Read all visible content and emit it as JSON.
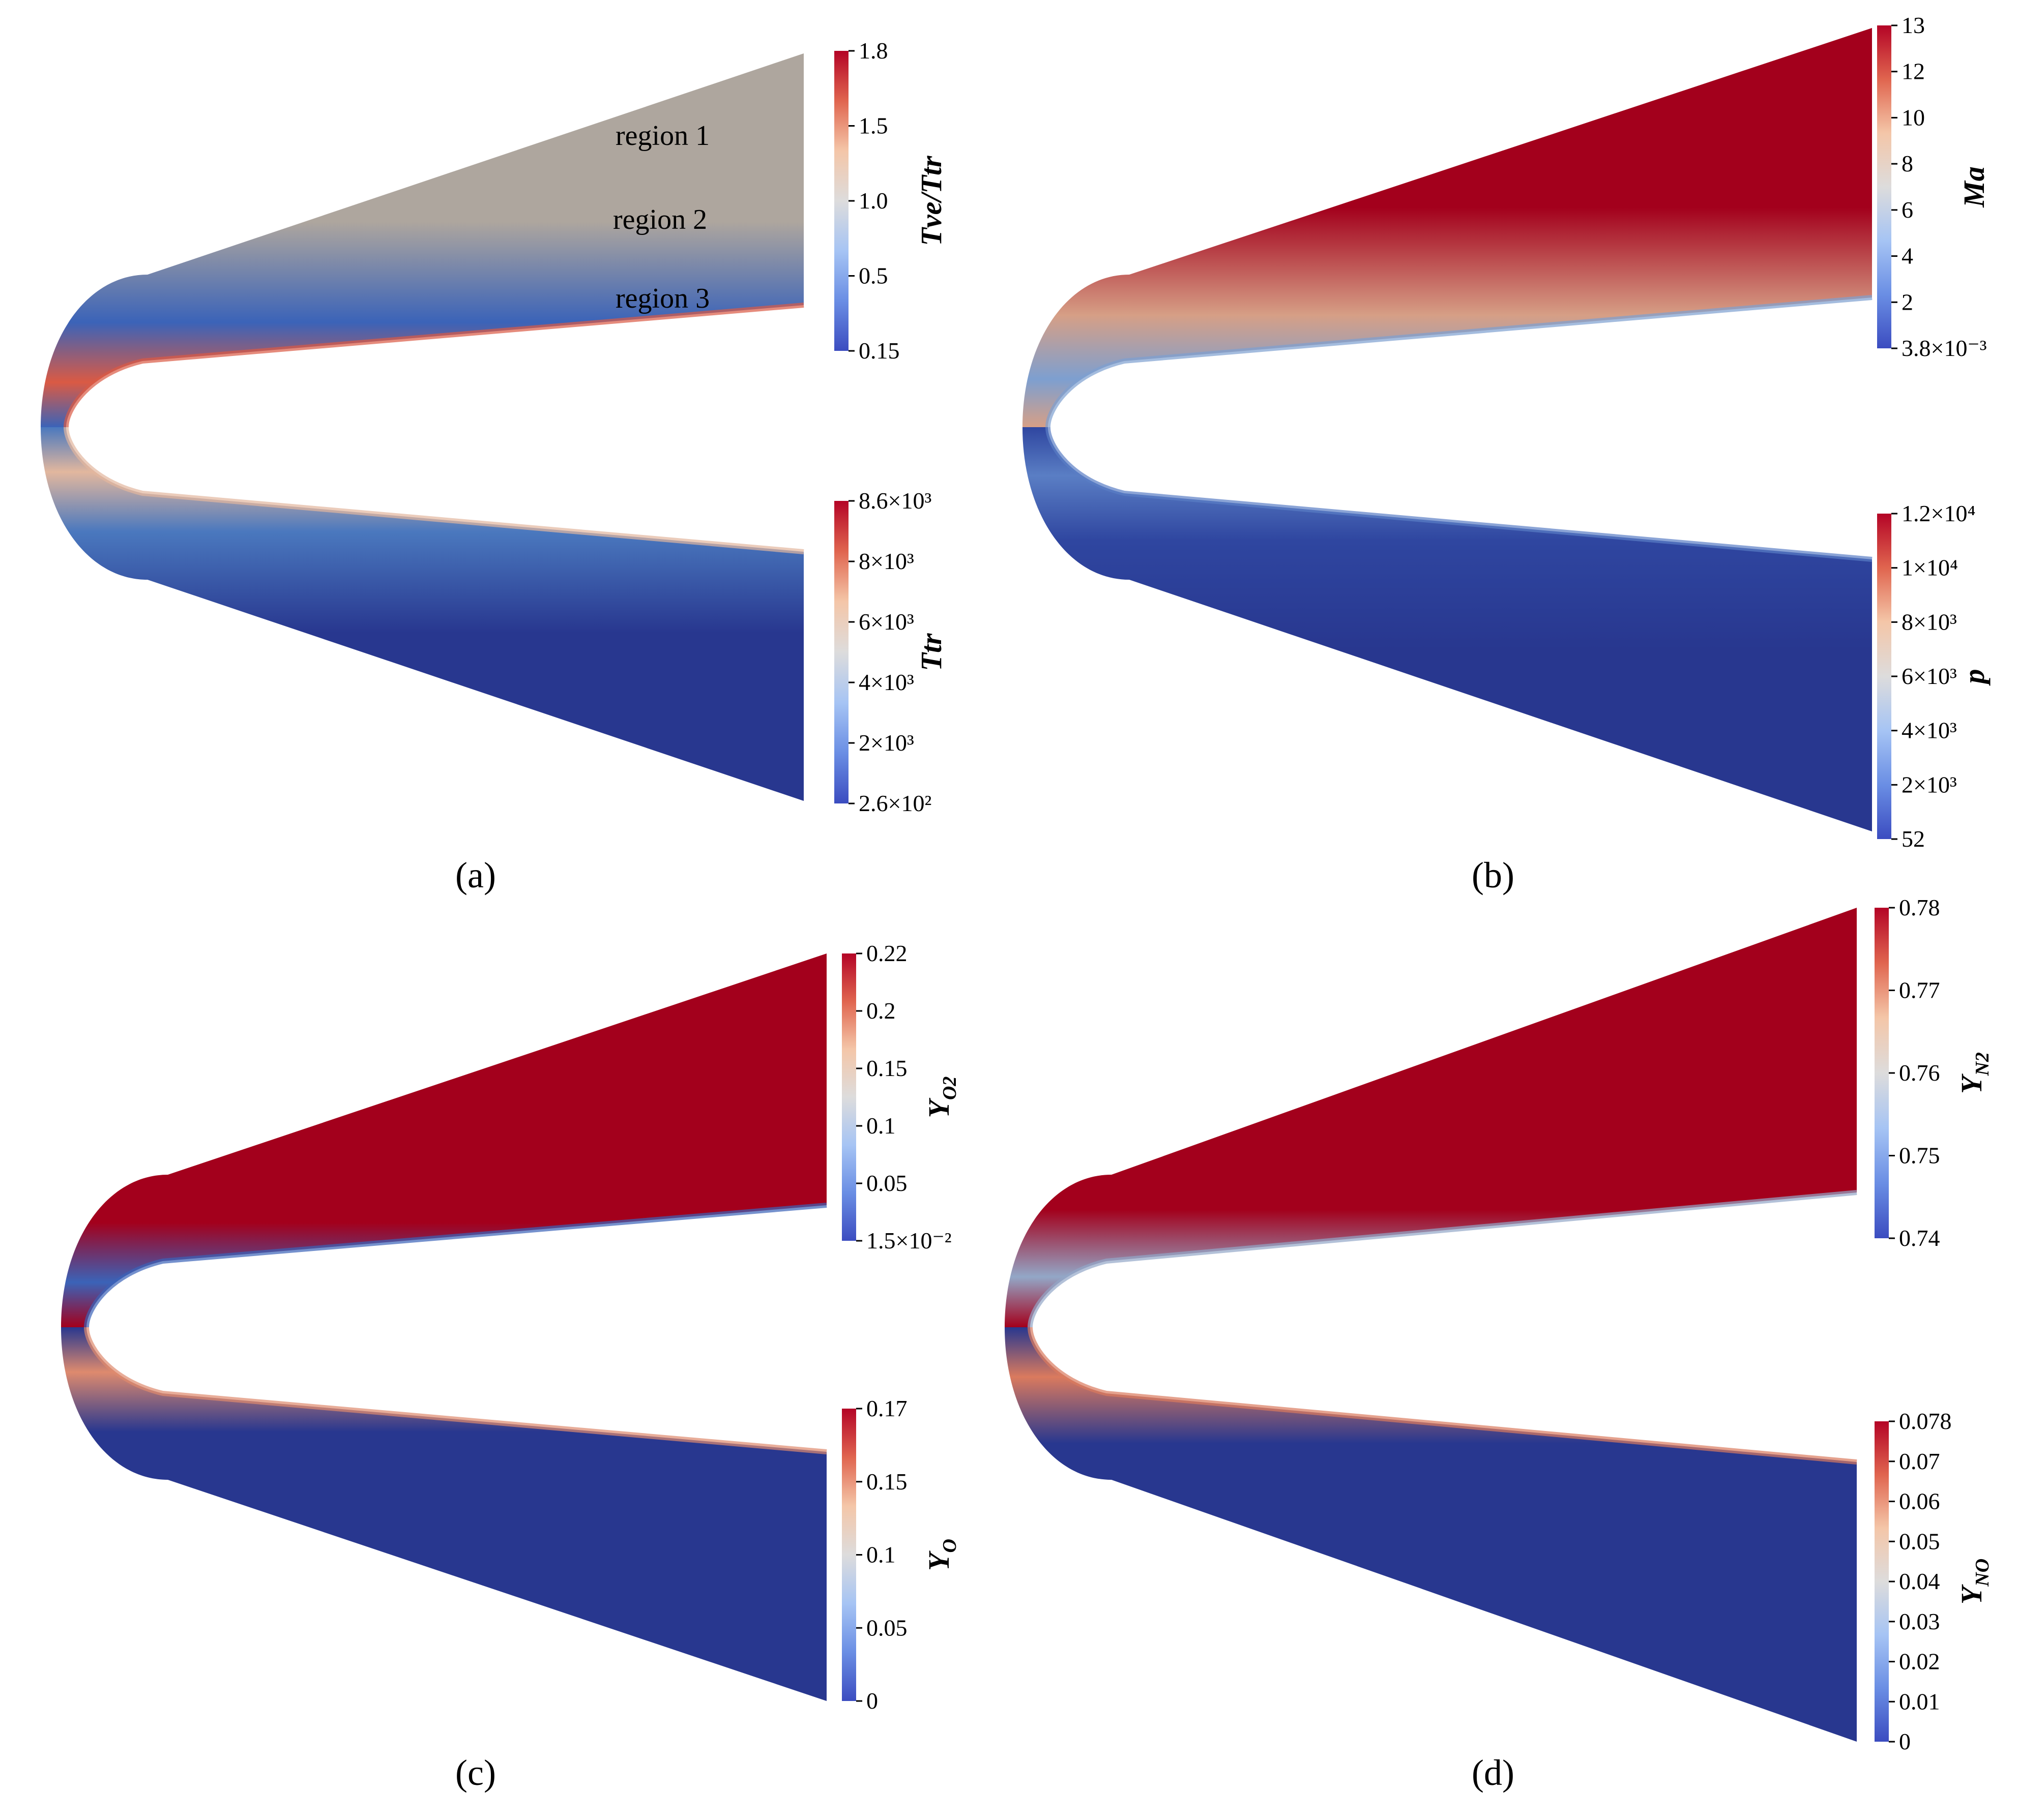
{
  "panels": [
    {
      "label": "(a)",
      "region_labels": [
        "region 1",
        "region 2",
        "region 3"
      ],
      "upper": {
        "variable": "Tve/Ttr",
        "sub": "",
        "colors": {
          "stream": "#aea69e",
          "mid": "#3b63b8",
          "wall": "#da5a44"
        },
        "ticks": [
          "1.8",
          "1.5",
          "1.0",
          "0.5",
          "0.15"
        ]
      },
      "lower": {
        "variable": "Ttr",
        "sub": "",
        "colors": {
          "stream": "#28378f",
          "mid": "#4a78be",
          "wall": "#e2b79e"
        },
        "ticks": [
          "8.6×10³",
          "8×10³",
          "6×10³",
          "4×10³",
          "2×10³",
          "2.6×10²"
        ]
      }
    },
    {
      "label": "(b)",
      "upper": {
        "variable": "Ma",
        "sub": "",
        "colors": {
          "stream": "#a3001c",
          "mid": "#d69f86",
          "wall": "#7d9fd0"
        },
        "ticks": [
          "13",
          "12",
          "10",
          "8",
          "6",
          "4",
          "2",
          "3.8×10⁻³"
        ]
      },
      "lower": {
        "variable": "p",
        "sub": "",
        "colors": {
          "stream": "#28378f",
          "mid": "#2f46a0",
          "wall": "#5a7ec4"
        },
        "ticks": [
          "1.2×10⁴",
          "1×10⁴",
          "8×10³",
          "6×10³",
          "4×10³",
          "2×10³",
          "52"
        ]
      }
    },
    {
      "label": "(c)",
      "upper": {
        "variable": "Y",
        "sub": "O2",
        "colors": {
          "stream": "#a3001c",
          "mid": "#a3001c",
          "wall": "#3b63b8"
        },
        "ticks": [
          "0.22",
          "0.2",
          "0.15",
          "0.1",
          "0.05",
          "1.5×10⁻²"
        ]
      },
      "lower": {
        "variable": "Y",
        "sub": "O",
        "colors": {
          "stream": "#28378f",
          "mid": "#28378f",
          "wall": "#de8a6e"
        },
        "ticks": [
          "0.17",
          "0.15",
          "0.1",
          "0.05",
          "0"
        ]
      }
    },
    {
      "label": "(d)",
      "upper": {
        "variable": "Y",
        "sub": "N2",
        "colors": {
          "stream": "#a3001c",
          "mid": "#a3001c",
          "wall": "#93a7c7"
        },
        "ticks": [
          "0.78",
          "0.77",
          "0.76",
          "0.75",
          "0.74"
        ]
      },
      "lower": {
        "variable": "Y",
        "sub": "NO",
        "colors": {
          "stream": "#28378f",
          "mid": "#28378f",
          "wall": "#da7a5e"
        },
        "ticks": [
          "0.078",
          "0.07",
          "0.06",
          "0.05",
          "0.04",
          "0.03",
          "0.02",
          "0.01",
          "0"
        ]
      }
    }
  ],
  "colorbar_gradient": [
    "#b40426",
    "#e0654f",
    "#f4c6a8",
    "#dddcdc",
    "#a6c4f4",
    "#6a8ee4",
    "#3b4cc0"
  ]
}
